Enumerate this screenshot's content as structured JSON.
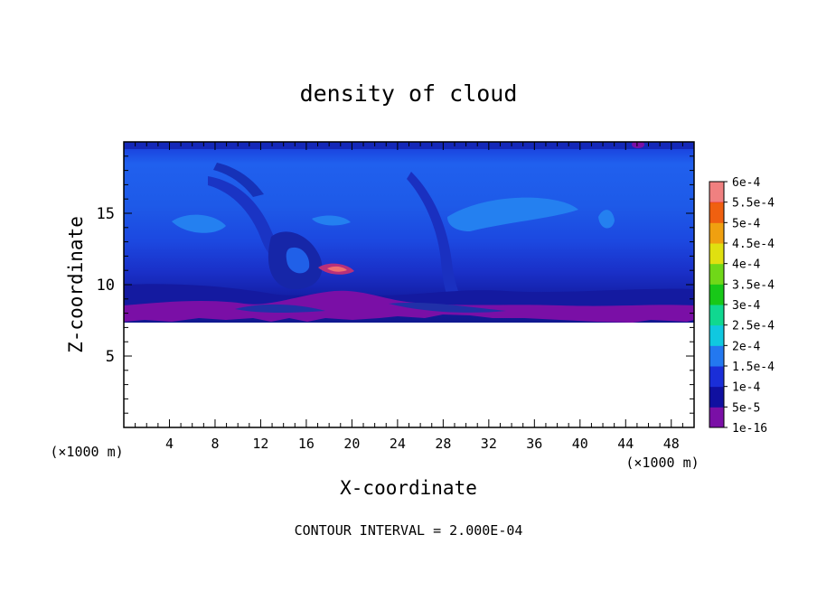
{
  "chart_data": {
    "type": "heatmap",
    "title": "density of cloud",
    "xlabel": "X-coordinate",
    "ylabel": "Z-coordinate",
    "x_unit_left": "(×1000 m)",
    "x_unit_right": "(×1000 m)",
    "xlim": [
      0,
      50
    ],
    "ylim": [
      0,
      20
    ],
    "x_ticks": [
      4,
      8,
      12,
      16,
      20,
      24,
      28,
      32,
      36,
      40,
      44,
      48
    ],
    "y_ticks": [
      5,
      10,
      15
    ],
    "footer": "CONTOUR INTERVAL = 2.000E-04",
    "colorbar": {
      "levels": [
        "1e-16",
        "5e-5",
        "1e-4",
        "1.5e-4",
        "2e-4",
        "2.5e-4",
        "3e-4",
        "3.5e-4",
        "4e-4",
        "4.5e-4",
        "5e-4",
        "5.5e-4",
        "6e-4"
      ],
      "colors": [
        "#7a0fa6",
        "#1010a0",
        "#1a2ed8",
        "#2378f0",
        "#10c8e0",
        "#10d890",
        "#18c818",
        "#70d818",
        "#e0e010",
        "#f0a010",
        "#f06010",
        "#f02020",
        "#f08080"
      ]
    },
    "field_summary": {
      "cloud_base_z": 7.5,
      "cloud_top_z": 20,
      "dominant_range": "1e-4 to 1.5e-4",
      "max_local_range": "4e-4 near x=19, z=11"
    }
  }
}
